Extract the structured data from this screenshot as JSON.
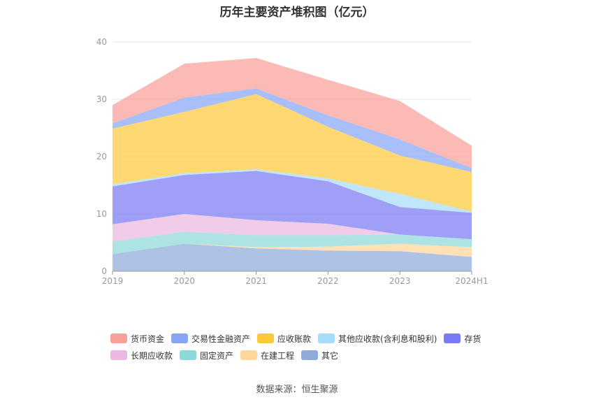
{
  "chart_data": {
    "type": "area",
    "stacked": true,
    "title": "历年主要资产堆积图（亿元）",
    "categories": [
      "2019",
      "2020",
      "2021",
      "2022",
      "2023",
      "2024H1"
    ],
    "ylim": [
      0,
      40
    ],
    "yticks": [
      0,
      10,
      20,
      30,
      40
    ],
    "grid": true,
    "legend_position": "bottom",
    "series": [
      {
        "name": "其它",
        "color": "#8eaadb",
        "values": [
          3.0,
          4.8,
          4.0,
          3.6,
          3.5,
          2.5
        ]
      },
      {
        "name": "在建工程",
        "color": "#ffd699",
        "values": [
          0.0,
          0.0,
          0.2,
          0.7,
          1.3,
          1.7
        ]
      },
      {
        "name": "固定资产",
        "color": "#8dd8d8",
        "values": [
          2.2,
          2.1,
          2.1,
          2.0,
          1.6,
          1.4
        ]
      },
      {
        "name": "长期应收款",
        "color": "#eab8e0",
        "values": [
          3.0,
          3.1,
          2.6,
          2.0,
          0.0,
          0.0
        ]
      },
      {
        "name": "存货",
        "color": "#7a7af4",
        "values": [
          6.6,
          6.8,
          8.6,
          7.4,
          4.8,
          4.6
        ]
      },
      {
        "name": "其他应收款(含利息和股利)",
        "color": "#a6dcf6",
        "values": [
          0.4,
          0.3,
          0.3,
          0.5,
          2.3,
          0.2
        ]
      },
      {
        "name": "应收账款",
        "color": "#fcc93d",
        "values": [
          9.7,
          10.7,
          13.1,
          9.0,
          6.7,
          6.9
        ]
      },
      {
        "name": "交易性金融资产",
        "color": "#88a6f6",
        "values": [
          0.9,
          2.5,
          1.0,
          2.0,
          2.8,
          0.7
        ]
      },
      {
        "name": "货币资金",
        "color": "#f9a098",
        "values": [
          3.2,
          5.9,
          5.3,
          6.2,
          6.7,
          3.9
        ]
      }
    ],
    "source": "数据来源：恒生聚源"
  },
  "legend": {
    "rows": [
      [
        {
          "label": "货币资金",
          "color": "#f9a098"
        },
        {
          "label": "交易性金融资产",
          "color": "#88a6f6"
        },
        {
          "label": "应收账款",
          "color": "#fcc93d"
        },
        {
          "label": "其他应收款(含利息和股利)",
          "color": "#a6dcf6"
        },
        {
          "label": "存货",
          "color": "#7a7af4"
        }
      ],
      [
        {
          "label": "长期应收款",
          "color": "#eab8e0"
        },
        {
          "label": "固定资产",
          "color": "#8dd8d8"
        },
        {
          "label": "在建工程",
          "color": "#ffd699"
        },
        {
          "label": "其它",
          "color": "#8eaadb"
        }
      ]
    ]
  }
}
